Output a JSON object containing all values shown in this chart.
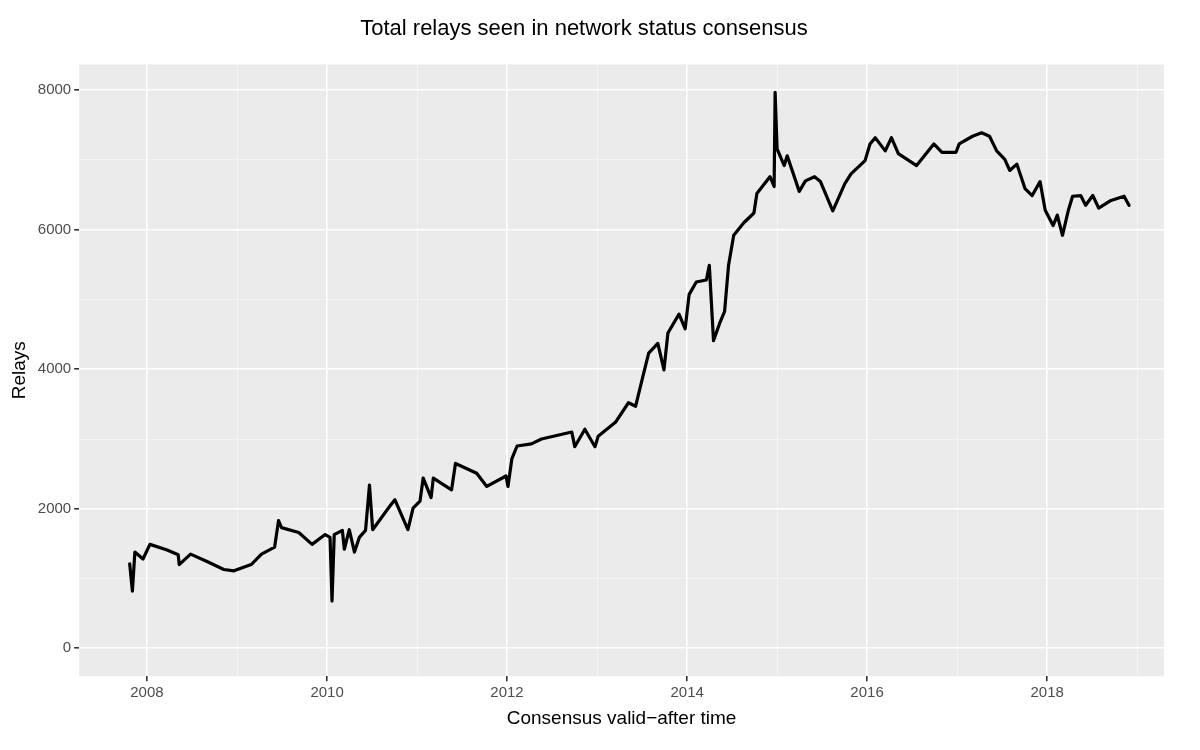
{
  "chart_data": {
    "type": "line",
    "title": "Total relays seen in network status consensus",
    "xlabel": "Consensus valid−after time",
    "ylabel": "Relays",
    "x": [
      "2007-10-23",
      "2007-11-03",
      "2007-11-13",
      "2007-12-16",
      "2008-01-13",
      "2008-03-23",
      "2008-05-07",
      "2008-05-11",
      "2008-06-26",
      "2008-09-03",
      "2008-11-08",
      "2008-12-19",
      "2009-02-27",
      "2009-04-10",
      "2009-06-02",
      "2009-06-18",
      "2009-06-30",
      "2009-09-08",
      "2009-11-01",
      "2009-12-24",
      "2010-01-13",
      "2010-01-21",
      "2010-01-30",
      "2010-03-04",
      "2010-03-12",
      "2010-04-01",
      "2010-04-22",
      "2010-05-12",
      "2010-06-06",
      "2010-06-22",
      "2010-07-05",
      "2010-09-13",
      "2010-10-03",
      "2010-11-25",
      "2010-12-16",
      "2011-01-13",
      "2011-01-26",
      "2011-02-27",
      "2011-03-08",
      "2011-05-21",
      "2011-06-06",
      "2011-08-31",
      "2011-10-11",
      "2011-12-28",
      "2012-01-05",
      "2012-01-21",
      "2012-02-11",
      "2012-04-09",
      "2012-05-20",
      "2012-09-20",
      "2012-10-02",
      "2012-11-12",
      "2012-12-23",
      "2013-01-05",
      "2013-03-16",
      "2013-05-08",
      "2013-06-06",
      "2013-07-05",
      "2013-07-29",
      "2013-09-04",
      "2013-09-29",
      "2013-10-15",
      "2013-11-29",
      "2013-12-24",
      "2014-01-09",
      "2014-02-07",
      "2014-03-20",
      "2014-04-01",
      "2014-04-18",
      "2014-05-12",
      "2014-06-02",
      "2014-06-18",
      "2014-07-09",
      "2014-08-19",
      "2014-09-29",
      "2014-10-11",
      "2014-12-03",
      "2014-12-20",
      "2014-12-24",
      "2015-01-01",
      "2015-01-30",
      "2015-02-11",
      "2015-04-01",
      "2015-04-26",
      "2015-06-02",
      "2015-06-26",
      "2015-08-15",
      "2015-10-03",
      "2015-10-28",
      "2015-12-24",
      "2016-01-13",
      "2016-02-03",
      "2016-03-15",
      "2016-04-09",
      "2016-05-07",
      "2016-07-20",
      "2016-09-28",
      "2016-10-31",
      "2016-12-27",
      "2017-01-09",
      "2017-03-04",
      "2017-04-10",
      "2017-05-12",
      "2017-06-10",
      "2017-07-13",
      "2017-08-02",
      "2017-08-31",
      "2017-10-03",
      "2017-11-01",
      "2017-12-03",
      "2017-12-24",
      "2018-01-25",
      "2018-02-11",
      "2018-03-04",
      "2018-03-28",
      "2018-04-14",
      "2018-05-17",
      "2018-06-06",
      "2018-07-05",
      "2018-07-29",
      "2018-09-17",
      "2018-11-09",
      "2018-11-29"
    ],
    "series": [
      {
        "color": "#000000",
        "values": [
          1210,
          820,
          1380,
          1280,
          1490,
          1410,
          1340,
          1200,
          1350,
          1240,
          1130,
          1110,
          1200,
          1350,
          1450,
          1830,
          1730,
          1660,
          1490,
          1630,
          1590,
          680,
          1630,
          1690,
          1420,
          1700,
          1380,
          1590,
          1690,
          2340,
          1700,
          2040,
          2130,
          1700,
          2010,
          2110,
          2440,
          2160,
          2440,
          2270,
          2650,
          2510,
          2320,
          2470,
          2320,
          2720,
          2900,
          2930,
          3000,
          3100,
          2890,
          3140,
          2890,
          3040,
          3240,
          3520,
          3470,
          3890,
          4230,
          4370,
          3990,
          4520,
          4790,
          4580,
          5070,
          5250,
          5280,
          5490,
          4410,
          4650,
          4830,
          5490,
          5920,
          6100,
          6240,
          6520,
          6760,
          6620,
          7970,
          7160,
          6920,
          7060,
          6550,
          6700,
          6760,
          6690,
          6270,
          6660,
          6800,
          6990,
          7230,
          7320,
          7130,
          7320,
          7090,
          6920,
          7230,
          7110,
          7110,
          7230,
          7340,
          7390,
          7340,
          7130,
          7010,
          6850,
          6940,
          6590,
          6490,
          6690,
          6280,
          6060,
          6210,
          5920,
          6280,
          6480,
          6490,
          6350,
          6490,
          6310,
          6420,
          6480,
          6350
        ]
      }
    ],
    "xlim": [
      "2007-04-01",
      "2019-04-20"
    ],
    "xticks": [
      {
        "value": "2008-01-01",
        "label": "2008"
      },
      {
        "value": "2009-01-01",
        "label": null
      },
      {
        "value": "2010-01-01",
        "label": "2010"
      },
      {
        "value": "2011-01-01",
        "label": null
      },
      {
        "value": "2012-01-01",
        "label": "2012"
      },
      {
        "value": "2013-01-01",
        "label": null
      },
      {
        "value": "2014-01-01",
        "label": "2014"
      },
      {
        "value": "2015-01-01",
        "label": null
      },
      {
        "value": "2016-01-01",
        "label": "2016"
      },
      {
        "value": "2017-01-01",
        "label": null
      },
      {
        "value": "2018-01-01",
        "label": "2018"
      },
      {
        "value": "2019-01-01",
        "label": null
      }
    ],
    "ylim": [
      -400,
      8370
    ],
    "yticks": [
      0,
      {
        "value": 1000,
        "label": null
      },
      2000,
      {
        "value": 3000,
        "label": null
      },
      4000,
      {
        "value": 5000,
        "label": null
      },
      6000,
      {
        "value": 7000,
        "label": null
      },
      8000
    ],
    "grid": true,
    "legend": false,
    "marker": "none",
    "line_style": "solid"
  }
}
